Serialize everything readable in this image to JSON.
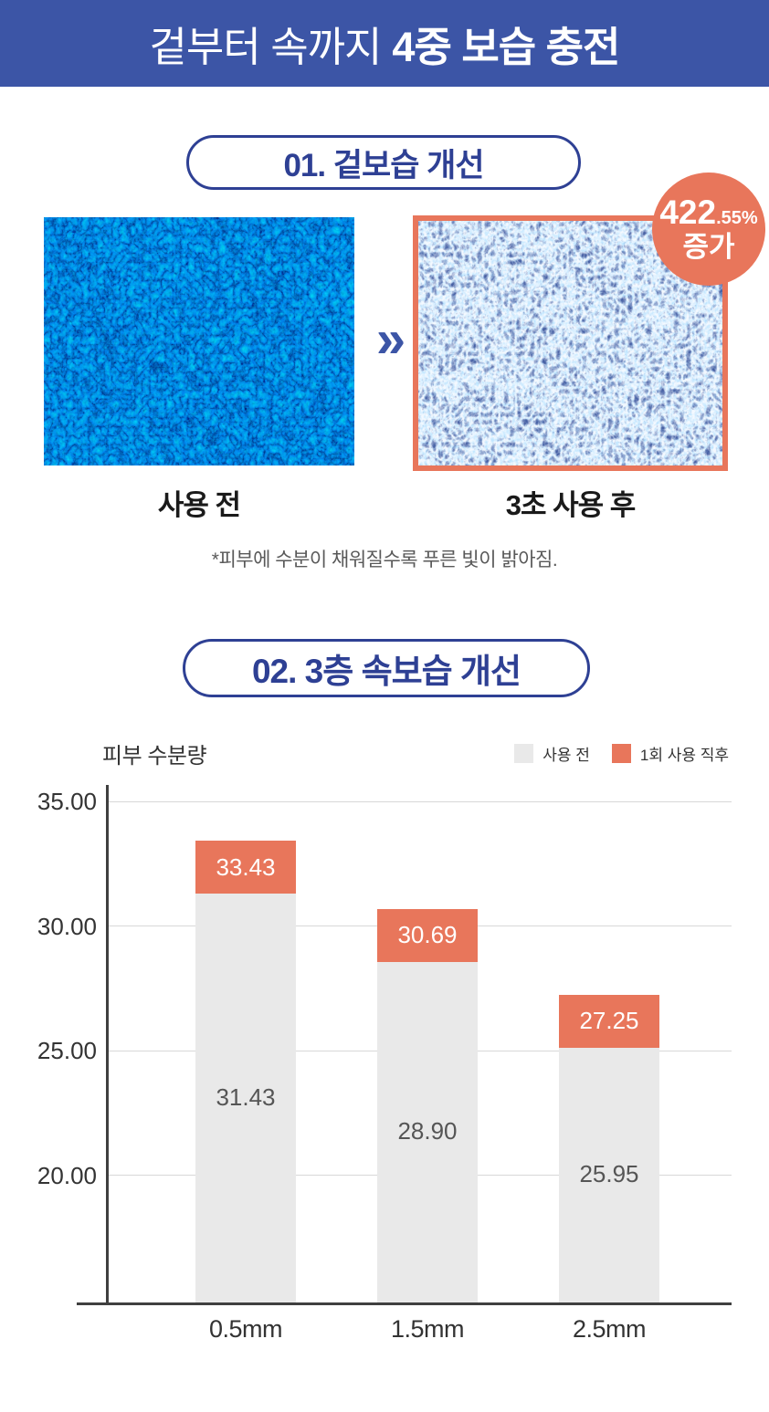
{
  "header": {
    "title_light": "겉부터 속까지",
    "title_bold": "4중 보습 충전"
  },
  "section1": {
    "title": "01. 겉보습 개선",
    "badge": {
      "value": "422",
      "decimal": ".55%",
      "label": "증가"
    },
    "arrow": "»",
    "before_label": "사용 전",
    "after_label": "3초 사용 후",
    "note": "*피부에 수분이 채워질수록 푸른 빛이 밝아짐."
  },
  "section2": {
    "title": "02. 3층 속보습 개선"
  },
  "chart_data": {
    "type": "bar",
    "title": "피부 수분량",
    "xlabel": "",
    "ylabel": "",
    "categories": [
      "0.5mm",
      "1.5mm",
      "2.5mm"
    ],
    "series": [
      {
        "name": "사용 전",
        "color": "#e9e9e9",
        "values": [
          31.43,
          28.9,
          25.95
        ]
      },
      {
        "name": "1회 사용 직후",
        "color": "#e8765b",
        "values": [
          33.43,
          30.69,
          27.25
        ]
      }
    ],
    "yticks": [
      35,
      30,
      25,
      20
    ],
    "ytick_labels": [
      "35.00",
      "30.00",
      "25.00",
      "20.00"
    ],
    "ylim": [
      14.9,
      36.5
    ],
    "grid": true,
    "legend_position": "top-right",
    "bar_style": "gray pre-use bar with orange post-use cap segment, value labels inside segments"
  },
  "colors": {
    "banner_blue": "#3c55a6",
    "navy": "#2e4094",
    "orange": "#e8765b",
    "bar_gray": "#e9e9e9",
    "axis": "#3f3f3f",
    "gridline": "#d8d8d8"
  }
}
